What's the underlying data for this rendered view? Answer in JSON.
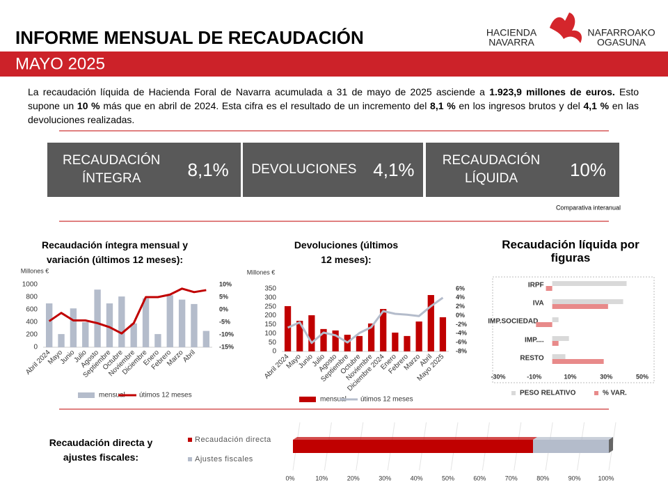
{
  "header": {
    "title": "INFORME MENSUAL DE RECAUDACIÓN",
    "subtitle": "MAYO 2025",
    "logo": {
      "left": [
        "HACIENDA",
        "NAVARRA"
      ],
      "right": [
        "NAFARROAKO",
        "OGASUNA"
      ]
    }
  },
  "intro": [
    {
      "text": "La recaudación líquida de Hacienda Foral de Navarra acumulada a 31 de mayo de 2025 asciende a ",
      "bold": false
    },
    {
      "text": "1.923,9 millones de euros.",
      "bold": true
    },
    {
      "text": " Esto supone un ",
      "bold": false
    },
    {
      "text": "10 %",
      "bold": true
    },
    {
      "text": " más que en abril de 2024. Esta cifra es el resultado de un incremento del ",
      "bold": false
    },
    {
      "text": "8,1 %",
      "bold": true
    },
    {
      "text": " en los ingresos brutos y del ",
      "bold": false
    },
    {
      "text": "4,1 %",
      "bold": true
    },
    {
      "text": " en las devoluciones realizadas.",
      "bold": false
    }
  ],
  "kpis": [
    {
      "label": "RECAUDACIÓN ÍNTEGRA",
      "value": "8,1%"
    },
    {
      "label": "DEVOLUCIONES",
      "value": "4,1%"
    },
    {
      "label": "RECAUDACIÓN LÍQUIDA",
      "value": "10%"
    }
  ],
  "kpi_note": "Comparativa interanual",
  "chart_data": [
    {
      "type": "combo",
      "title": "Recaudación íntegra mensual y variación (últimos 12 meses):",
      "y_label": "Millones €",
      "categories": [
        "Abril 2024",
        "Mayo",
        "Junio",
        "Julio",
        "Agosto",
        "Septiembre",
        "Octubre",
        "Noviembre",
        "Diciembre",
        "Enero",
        "Febrero",
        "Marzo",
        "Abril",
        null
      ],
      "series": [
        {
          "name": "mensual",
          "type": "bar",
          "color": "#b4bccb",
          "values": [
            700,
            210,
            620,
            400,
            920,
            700,
            810,
            380,
            780,
            210,
            830,
            760,
            690,
            260
          ]
        },
        {
          "name": "útimos 12 meses",
          "type": "line",
          "axis": "y2",
          "color": "#c00000",
          "values": [
            -4.6,
            -1.3,
            -4.3,
            -4.3,
            -5.4,
            -7,
            -9.5,
            -5.4,
            5,
            5,
            6,
            8.4,
            7,
            7.8
          ]
        }
      ],
      "ylim": [
        0,
        1000
      ],
      "yticks": [
        0,
        200,
        400,
        600,
        800,
        1000
      ],
      "y2lim": [
        -15,
        10
      ],
      "y2ticks": [
        {
          "value": 10,
          "label": "10%"
        },
        {
          "value": 5,
          "label": "5%"
        },
        {
          "value": 0,
          "label": "0%"
        },
        {
          "value": -5,
          "label": "-5%"
        },
        {
          "value": -10,
          "label": "-10%"
        },
        {
          "value": -15,
          "label": "-15%"
        }
      ]
    },
    {
      "type": "combo",
      "title": "Devoluciones (últimos 12 meses):",
      "y_label": "Millones €",
      "categories": [
        "Abril 2024",
        "Mayo",
        "Junio",
        "Julio",
        "Agosto",
        "Septiembre",
        "Octubre",
        "Noviembre",
        "Diciembre 2024",
        "Enero",
        "Febrero",
        "Marzo",
        "Abril",
        "Mayo 2025"
      ],
      "series": [
        {
          "name": "mensual",
          "type": "bar",
          "color": "#c00000",
          "values": [
            253,
            171,
            202,
            125,
            117,
            93,
            86,
            156,
            237,
            105,
            86,
            167,
            315,
            191
          ]
        },
        {
          "name": "útimos 12 meses",
          "type": "line",
          "axis": "y2",
          "color": "#b4bccb",
          "values": [
            -2.7,
            -1.5,
            -6.1,
            -3.8,
            -4.4,
            -6,
            -3.9,
            -2.6,
            1,
            0.4,
            0.2,
            -0.1,
            2.1,
            4
          ]
        }
      ],
      "ylim": [
        0,
        350
      ],
      "yticks": [
        0,
        50,
        100,
        150,
        200,
        250,
        300,
        350
      ],
      "y2lim": [
        -8,
        6
      ],
      "y2ticks": [
        {
          "value": 6,
          "label": "6%"
        },
        {
          "value": 4,
          "label": "4%"
        },
        {
          "value": 2,
          "label": "2%"
        },
        {
          "value": 0,
          "label": "0%"
        },
        {
          "value": -2,
          "label": "-2%"
        },
        {
          "value": -4,
          "label": "-4%"
        },
        {
          "value": -6,
          "label": "-6%"
        },
        {
          "value": -8,
          "label": "-8%"
        }
      ]
    },
    {
      "type": "barh",
      "title": "Recaudación líquida por figuras",
      "categories": [
        "IRPF",
        "IVA",
        "IMP.SOCIEDAD...",
        "IMP....",
        "RESTO"
      ],
      "series": [
        {
          "name": "PESO RELATIVO",
          "color": "#d9d9d9",
          "values": [
            41.3,
            39.4,
            3.5,
            9.3,
            7.3
          ]
        },
        {
          "name": "% VAR.",
          "color": "#e88a8a",
          "values": [
            -3.5,
            31,
            -9,
            3.5,
            28.6
          ]
        }
      ],
      "xlim": [
        -30,
        50
      ],
      "xticks": [
        {
          "value": -30,
          "label": "-30%"
        },
        {
          "value": -10,
          "label": "-10%"
        },
        {
          "value": 10,
          "label": "10%"
        },
        {
          "value": 30,
          "label": "30%"
        },
        {
          "value": 50,
          "label": "50%"
        }
      ]
    },
    {
      "type": "stackedbar",
      "title": "Recaudación directa y ajustes fiscales:",
      "series": [
        {
          "name": "Recaudación directa",
          "color": "#c00000",
          "values": [
            76
          ]
        },
        {
          "name": "Ajustes fiscales",
          "color": "#b4bccb",
          "values": [
            24
          ]
        }
      ],
      "xlim": [
        0,
        100
      ],
      "xticks": [
        {
          "value": 0,
          "label": "0%"
        },
        {
          "value": 10,
          "label": "10%"
        },
        {
          "value": 20,
          "label": "20%"
        },
        {
          "value": 30,
          "label": "30%"
        },
        {
          "value": 40,
          "label": "40%"
        },
        {
          "value": 50,
          "label": "50%"
        },
        {
          "value": 60,
          "label": "60%"
        },
        {
          "value": 70,
          "label": "70%"
        },
        {
          "value": 80,
          "label": "80%"
        },
        {
          "value": 90,
          "label": "90%"
        },
        {
          "value": 100,
          "label": "100%"
        }
      ],
      "grid": true
    }
  ]
}
